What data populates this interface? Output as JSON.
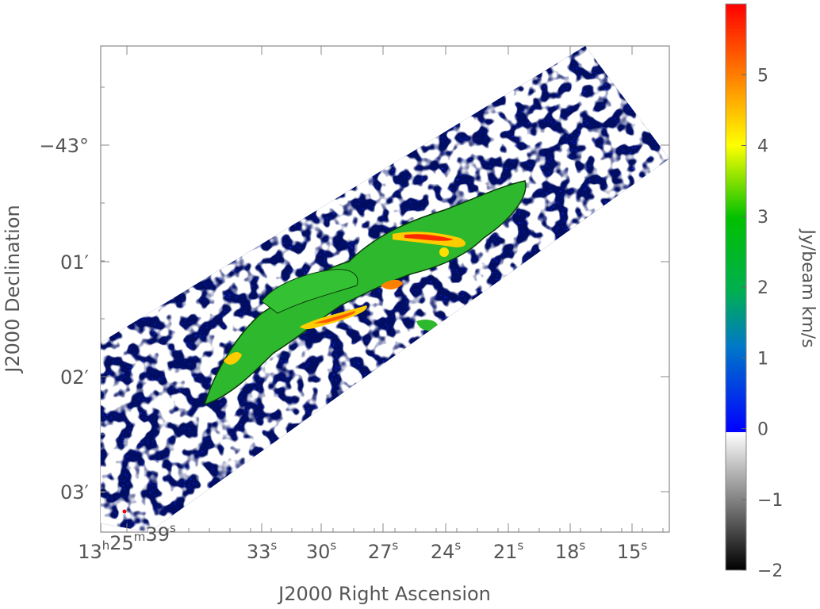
{
  "chart_data": {
    "type": "heatmap",
    "title": "",
    "xlabel": "J2000 Right Ascension",
    "ylabel": "J2000 Declination",
    "x_ticks": [
      {
        "h": "13",
        "m": "25",
        "s": "39"
      },
      {
        "s": "33"
      },
      {
        "s": "30"
      },
      {
        "s": "27"
      },
      {
        "s": "24"
      },
      {
        "s": "21"
      },
      {
        "s": "18"
      },
      {
        "s": "15"
      }
    ],
    "y_ticks": [
      {
        "label": "−43°"
      },
      {
        "label": "01′"
      },
      {
        "label": "02′"
      },
      {
        "label": "03′"
      }
    ],
    "colorbar": {
      "label": "Jy/beam km/s",
      "range": [
        -2,
        6
      ],
      "ticks": [
        {
          "value": 5,
          "label": "5"
        },
        {
          "value": 4,
          "label": "4"
        },
        {
          "value": 3,
          "label": "3"
        },
        {
          "value": 2,
          "label": "2"
        },
        {
          "value": 1,
          "label": "1"
        },
        {
          "value": 0,
          "label": "0"
        },
        {
          "value": -1,
          "label": "−1"
        },
        {
          "value": -2,
          "label": "−2"
        }
      ],
      "colors": {
        "negative_low": "#000000",
        "negative_high": "#ffffff",
        "zero": "#0000ff",
        "low": "#0078c8",
        "mid": "#00c000",
        "high": "#ffff00",
        "peak": "#ff0000"
      }
    },
    "map": {
      "background": "#0a1fe0",
      "contour_color": "#000000",
      "blank_color": "#ffffff",
      "emission_color": "#2eb82e",
      "peak_color": "#ff2a00"
    }
  }
}
